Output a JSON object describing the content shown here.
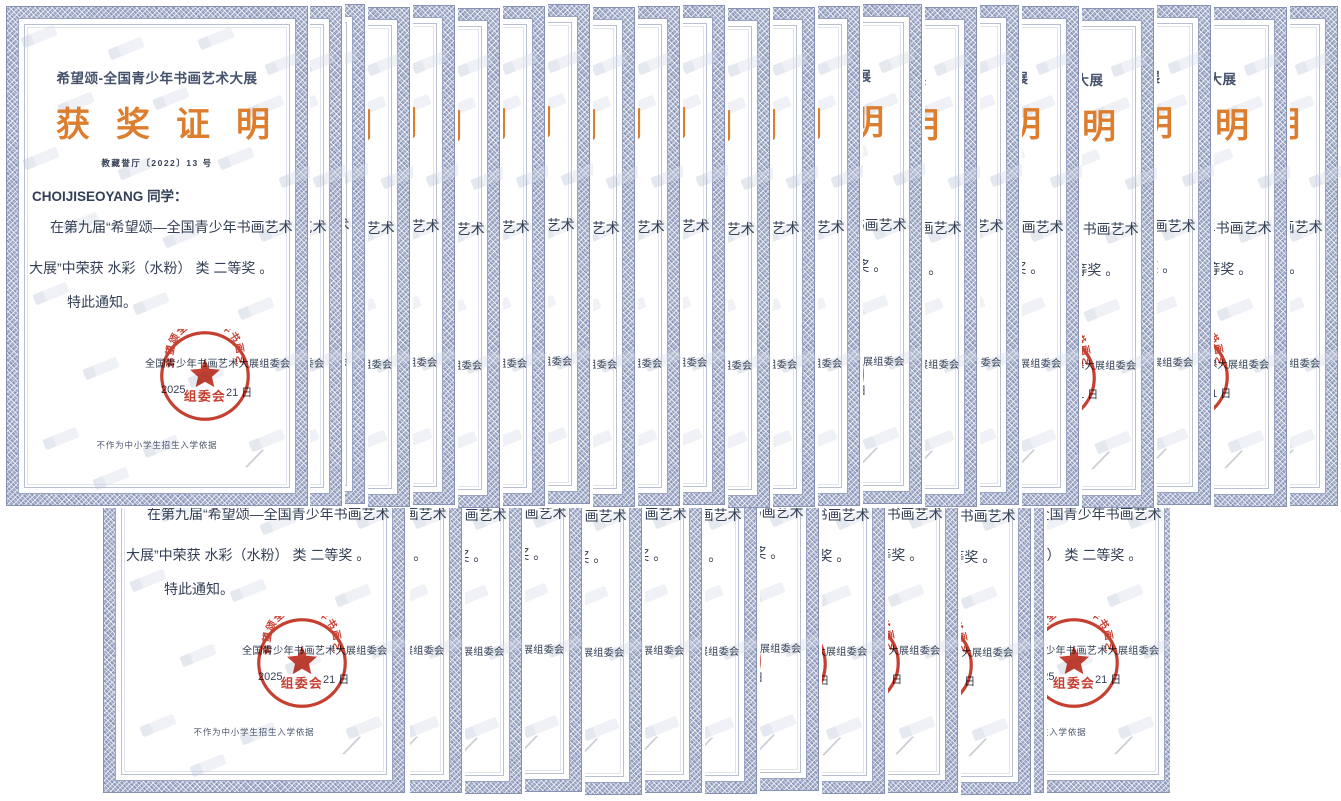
{
  "page": {
    "background": "#ffffff"
  },
  "colors": {
    "heading_orange": "#DD7E2F",
    "title_blue": "#45516B",
    "text_dark": "#333F54",
    "stamp_red": "#C12F20",
    "border_blue": "#8E98B8",
    "muted": "#4A566C"
  },
  "certificate": {
    "exhibition_title": "希望颂-全国青少年书画艺术大展",
    "award_heading": "获奖证明",
    "doc_number": "教藏誉厅〔2022〕13 号",
    "recipient_name": "CHOIJISEOYANG",
    "recipient_suffix": "同学：",
    "body_line1": "在第九届“希望颂—全国青少年书画艺术",
    "body_line2": "大展”中荣获 水彩（水粉） 类 二等奖 。",
    "body_line3": "特此通知。",
    "committee_line": "全国青少年书画艺术大展组委会",
    "date_left": "2025",
    "date_right": "21 日",
    "stamp_ring_text": "希望颂全国青少年书画艺术大展",
    "stamp_center_text": "组委会",
    "footer_note": "不作为中小学生招生入学依据",
    "pen_mark": "∕"
  }
}
